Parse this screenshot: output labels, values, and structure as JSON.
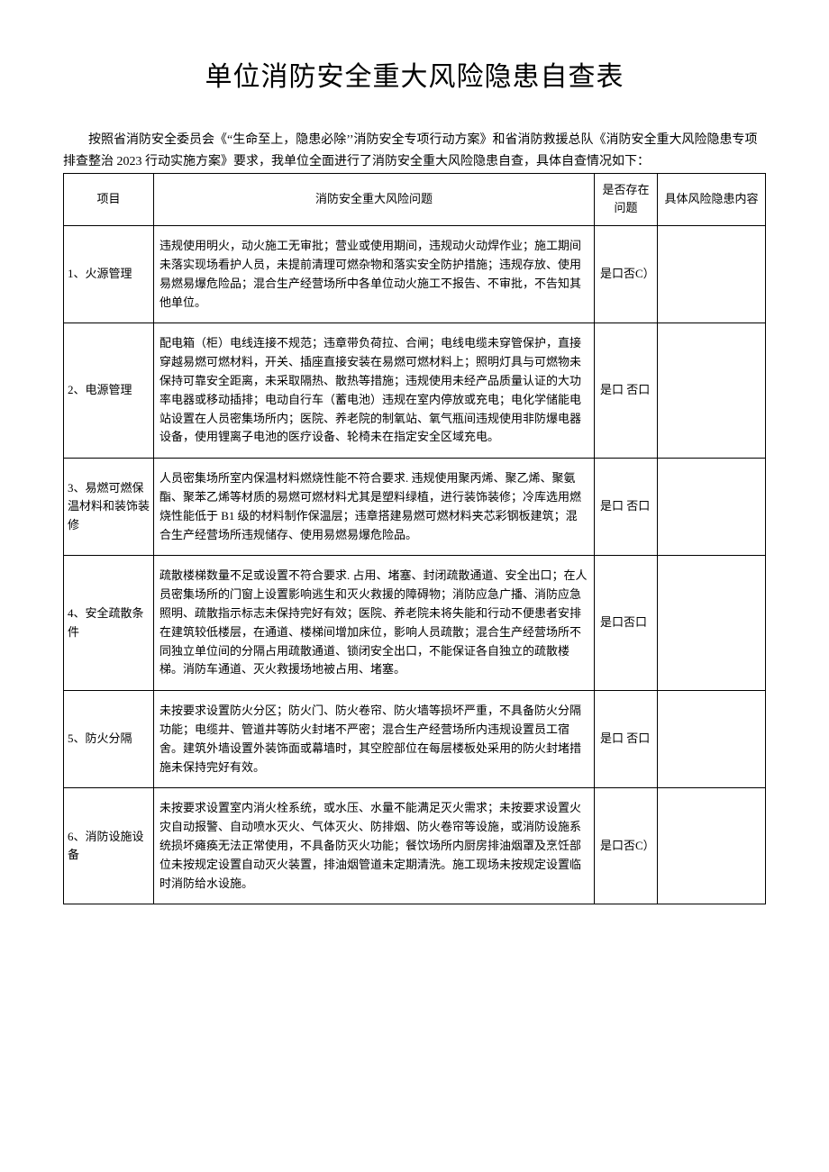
{
  "title": "单位消防安全重大风险隐患自查表",
  "intro": "按照省消防安全委员会《“生命至上，隐患必除’’消防安全专项行动方案》和省消防救援总队《消防安全重大风险隐患专项排查整治 2023 行动实施方案》要求，我单位全面进行了消防安全重大风险隐患自查，具体自查情况如下：",
  "headers": {
    "project": "项目",
    "problem": "消防安全重大风险问题",
    "exists": "是否存在问题",
    "detail": "具体风险隐患内容"
  },
  "rows": [
    {
      "project": "1、火源管理",
      "problem": "违规使用明火，动火施工无审批；营业或使用期间，违规动火动焊作业；施工期间未落实现场看护人员，未提前清理可燃杂物和落实安全防护措施；违规存放、使用易燃易爆危险品；混合生产经营场所中各单位动火施工不报告、不审批，不告知其他单位。",
      "exists": "是口否C）",
      "detail": ""
    },
    {
      "project": "2、电源管理",
      "problem": "配电箱（柜）电线连接不规范；违章带负荷拉、合闸；电线电缆未穿管保护，直接穿越易燃可燃材料，开关、插座直接安装在易燃可燃材料上；照明灯具与可燃物未保持可靠安全距离，未采取隔热、散热等措施；违规使用未经产品质量认证的大功率电器或移动插排；电动自行车（蓄电池）违规在室内停放或充电；电化学储能电站设置在人员密集场所内；医院、养老院的制氧站、氧气瓶间违规使用非防爆电器设备，使用锂离子电池的医疗设备、轮椅未在指定安全区域充电。",
      "exists": "是口 否口",
      "detail": ""
    },
    {
      "project": "3、易燃可燃保温材料和装饰装修",
      "problem": "人员密集场所室内保温材料燃烧性能不符合要求. 违规使用聚丙烯、聚乙烯、聚氨酯、聚苯乙烯等材质的易燃可燃材料尤其是塑料绿植，进行装饰装修；冷库选用燃烧性能低于 B1 级的材料制作保温层；违章搭建易燃可燃材料夹芯彩钢板建筑；混合生产经营场所违规储存、使用易燃易爆危险品。",
      "exists": "是口 否口",
      "detail": ""
    },
    {
      "project": "4、安全疏散条件",
      "problem": "疏散楼梯数量不足或设置不符合要求. 占用、堵塞、封闭疏散通道、安全出口；在人员密集场所的门窗上设置影响逃生和灭火救援的障碍物；消防应急广播、消防应急照明、疏散指示标志未保持完好有效；医院、养老院未将失能和行动不便患者安排在建筑较低楼层，在通道、楼梯间增加床位，影响人员疏散；混合生产经营场所不同独立单位间的分隔占用疏散通道、锁闭安全出口，不能保证各自独立的疏散楼梯。消防车通道、灭火救援场地被占用、堵塞。",
      "exists": "是口否口",
      "detail": ""
    },
    {
      "project": "5、防火分隔",
      "problem": "未按要求设置防火分区；防火门、防火卷帘、防火墙等损坏严重，不具备防火分隔功能；电缆井、管道井等防火封堵不严密；混合生产经营场所内违规设置员工宿舍。建筑外墙设置外装饰面或幕墙时，其空腔部位在每层楼板处采用的防火封堵措施未保持完好有效。",
      "exists": "是口 否口",
      "detail": ""
    },
    {
      "project": "6、消防设施设备",
      "problem": "未按要求设置室内消火栓系统，或水压、水量不能满足灭火需求；未按要求设置火灾自动报警、自动喷水灭火、气体灭火、防排烟、防火卷帘等设施，或消防设施系统损坏瘫痪无法正常使用，不具备防灭火功能；餐饮场所内厨房排油烟罩及烹饪部位未按规定设置自动灭火装置，排油烟管道未定期清洗。施工现场未按规定设置临时消防给水设施。",
      "exists": "是口否C）",
      "detail": ""
    }
  ]
}
